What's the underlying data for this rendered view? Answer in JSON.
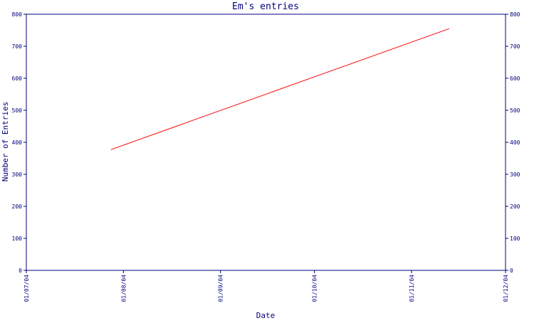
{
  "colors": {
    "axis": "#000080",
    "text": "#000080",
    "series": "#ff0000",
    "background": "#ffffff"
  },
  "chart_data": {
    "type": "line",
    "title": "Em's entries",
    "xlabel": "Date",
    "ylabel": "Number of Entries",
    "x_ticks": [
      "01/07/04",
      "01/08/04",
      "01/09/04",
      "01/10/04",
      "01/11/04",
      "01/12/04"
    ],
    "y_ticks": [
      "0",
      "100",
      "200",
      "300",
      "400",
      "500",
      "600",
      "700",
      "800"
    ],
    "y_ticks_right": [
      "0",
      "100",
      "200",
      "300",
      "400",
      "500",
      "600",
      "700",
      "800"
    ],
    "xlim": [
      "2004-07-01",
      "2004-12-01"
    ],
    "ylim": [
      0,
      800
    ],
    "grid": false,
    "series": [
      {
        "color": "#ff0000",
        "points": [
          {
            "x": "2004-07-28",
            "y": 377
          },
          {
            "x": "2004-11-13",
            "y": 755
          }
        ]
      }
    ]
  }
}
